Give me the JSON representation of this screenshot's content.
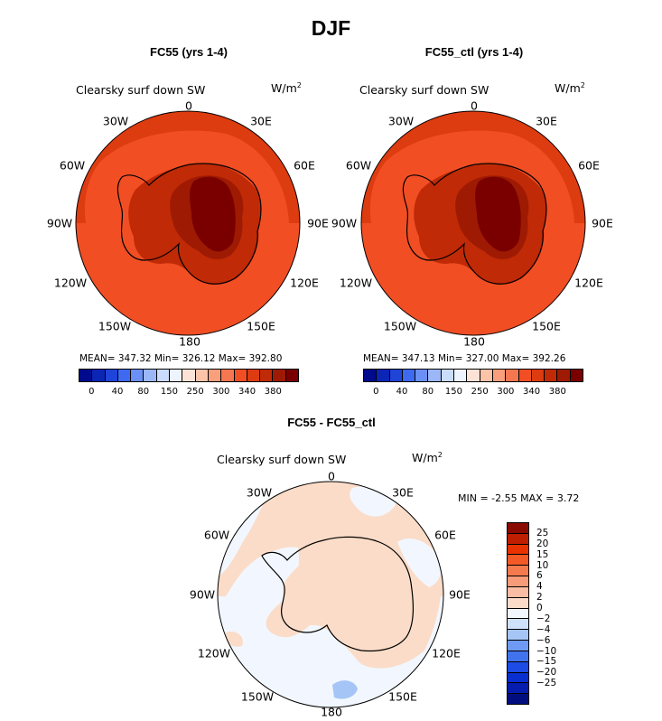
{
  "figure": {
    "title": "DJF"
  },
  "chart_data": [
    {
      "type": "heatmap",
      "title": "FC55 (yrs 1-4)",
      "variable": "Clearsky surf down SW",
      "units": "W/m",
      "units_exp": "2",
      "projection": "polar stereographic, south pole",
      "lon_labels": [
        "0",
        "30E",
        "60E",
        "90E",
        "120E",
        "150E",
        "180",
        "150W",
        "120W",
        "90W",
        "60W",
        "30W"
      ],
      "stats": {
        "text": "MEAN= 347.32   Min= 326.12   Max= 392.80",
        "mean": 347.32,
        "min": 326.12,
        "max": 392.8
      },
      "colorbar": {
        "orientation": "horizontal",
        "tick_labels": [
          "0",
          "40",
          "80",
          "150",
          "250",
          "300",
          "340",
          "380"
        ],
        "colors": [
          "#000a8c",
          "#0b25b5",
          "#1f44d8",
          "#3d6af0",
          "#6a90f5",
          "#9cb7f8",
          "#cadcfb",
          "#eef4ff",
          "#fde3d6",
          "#fbc3a8",
          "#f99f7c",
          "#f6774f",
          "#f14e24",
          "#dd3b10",
          "#c02a06",
          "#9e1a03",
          "#7a0000"
        ]
      }
    },
    {
      "type": "heatmap",
      "title": "FC55_ctl (yrs 1-4)",
      "variable": "Clearsky surf down SW",
      "units": "W/m",
      "units_exp": "2",
      "projection": "polar stereographic, south pole",
      "lon_labels": [
        "0",
        "30E",
        "60E",
        "90E",
        "120E",
        "150E",
        "180",
        "150W",
        "120W",
        "90W",
        "60W",
        "30W"
      ],
      "stats": {
        "text": "MEAN= 347.13   Min= 327.00   Max= 392.26",
        "mean": 347.13,
        "min": 327.0,
        "max": 392.26
      },
      "colorbar": {
        "orientation": "horizontal",
        "tick_labels": [
          "0",
          "40",
          "80",
          "150",
          "250",
          "300",
          "340",
          "380"
        ],
        "colors": [
          "#000a8c",
          "#0b25b5",
          "#1f44d8",
          "#3d6af0",
          "#6a90f5",
          "#9cb7f8",
          "#cadcfb",
          "#eef4ff",
          "#fde3d6",
          "#fbc3a8",
          "#f99f7c",
          "#f6774f",
          "#f14e24",
          "#dd3b10",
          "#c02a06",
          "#9e1a03",
          "#7a0000"
        ]
      }
    },
    {
      "type": "heatmap",
      "title": "FC55 - FC55_ctl",
      "variable": "Clearsky surf down SW",
      "units": "W/m",
      "units_exp": "2",
      "projection": "polar stereographic, south pole",
      "lon_labels": [
        "0",
        "30E",
        "60E",
        "90E",
        "120E",
        "150E",
        "180",
        "150W",
        "120W",
        "90W",
        "60W",
        "30W"
      ],
      "stats": {
        "text": "MIN =   -2.55  MAX =    3.72",
        "min": -2.55,
        "max": 3.72
      },
      "colorbar": {
        "orientation": "vertical",
        "tick_labels": [
          "25",
          "20",
          "15",
          "10",
          "6",
          "4",
          "2",
          "0",
          "−2",
          "−4",
          "−6",
          "−10",
          "−15",
          "−20",
          "−25"
        ],
        "colors": [
          "#8a0a00",
          "#c01e00",
          "#e83200",
          "#f45a26",
          "#f57a4e",
          "#f69c78",
          "#f8bda2",
          "#fbdcc8",
          "#f2f7ff",
          "#cfe2fb",
          "#a5c5f7",
          "#6f9af3",
          "#4273ee",
          "#1d4be6",
          "#0a2fd0",
          "#061cae",
          "#020e80"
        ]
      }
    }
  ]
}
